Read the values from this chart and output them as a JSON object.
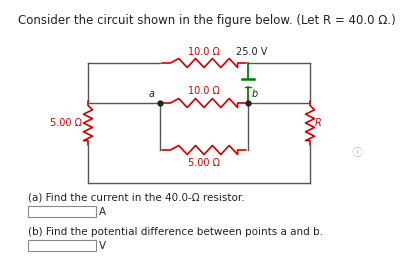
{
  "title": "Consider the circuit shown in the figure below. (Let R = 40.0 Ω.)",
  "title_fontsize": 8.5,
  "bg_color": "#ffffff",
  "resistor_color": "#cc0000",
  "wire_color": "#555555",
  "battery_color": "#008000",
  "dot_color": "#222222",
  "label_color": "#222222",
  "R_label_color": "#cc0000",
  "voltage_label": "25.0 V",
  "r1_label": "10.0 Ω",
  "r2_label": "10.0 Ω",
  "r3_label": "5.00 Ω",
  "r4_label": "5.00 Ω",
  "r5_label": "R",
  "point_a": "a",
  "point_b": "b",
  "qa_label": "(a) Find the current in the 40.0-Ω resistor.",
  "qa_unit": "A",
  "qb_label": "(b) Find the potential difference between points a and b.",
  "qb_unit": "V"
}
